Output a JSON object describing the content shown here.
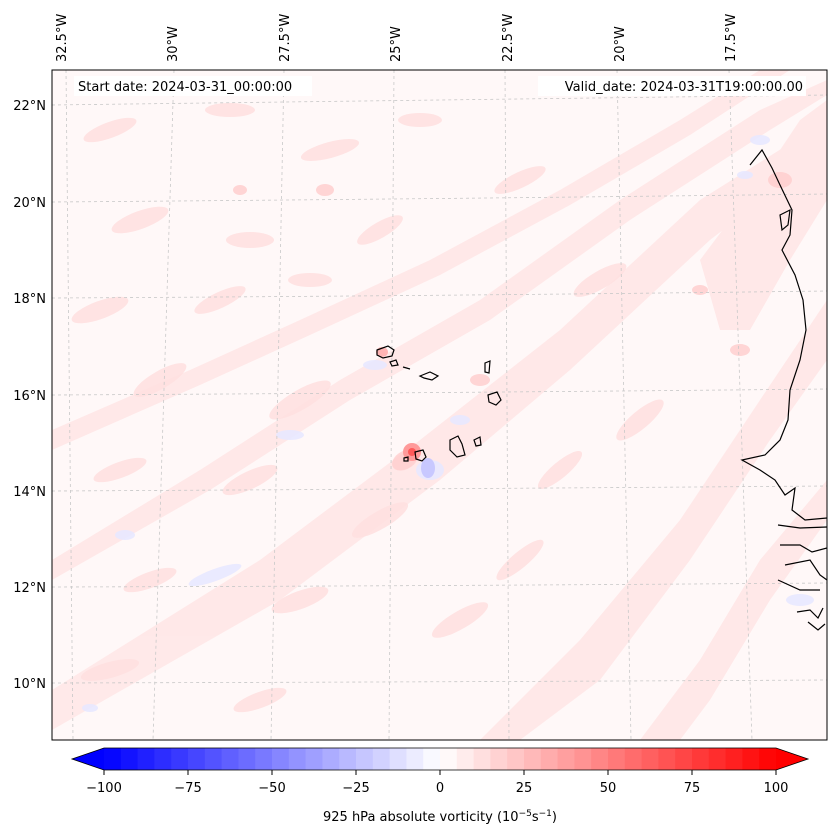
{
  "map": {
    "start_date_label": "Start date: 2024-03-31_00:00:00",
    "valid_date_label": "Valid_date: 2024-03-31T19:00:00.00",
    "lon_labels": [
      "32.5°W",
      "30°W",
      "27.5°W",
      "25°W",
      "22.5°W",
      "20°W",
      "17.5°W"
    ],
    "lat_labels": [
      "22°N",
      "20°N",
      "18°N",
      "16°N",
      "14°N",
      "12°N",
      "10°N"
    ],
    "field": "925 hPa absolute vorticity",
    "colormap": "bwr"
  },
  "colorbar": {
    "ticks": [
      "−100",
      "−75",
      "−50",
      "−25",
      "0",
      "25",
      "50",
      "75",
      "100"
    ],
    "label_main": "925 hPa absolute vorticity (10",
    "label_exp1": "−5",
    "label_mid": "s",
    "label_exp2": "−1",
    "label_end": ")",
    "min_color": "#0000ff",
    "mid_color": "#ffffff",
    "max_color": "#ff0000",
    "levels": 41
  }
}
